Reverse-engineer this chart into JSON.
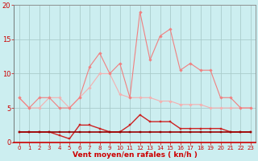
{
  "x": [
    0,
    1,
    2,
    3,
    4,
    5,
    6,
    7,
    8,
    9,
    10,
    11,
    12,
    13,
    14,
    15,
    16,
    17,
    18,
    19,
    20,
    21,
    22,
    23
  ],
  "rafales": [
    6.5,
    5.0,
    6.5,
    6.5,
    5.0,
    5.0,
    6.5,
    11.0,
    13.0,
    10.0,
    11.5,
    6.5,
    19.0,
    12.0,
    15.5,
    16.5,
    10.5,
    11.5,
    10.5,
    10.5,
    6.5,
    6.5,
    5.0,
    5.0
  ],
  "moyenne_rafales": [
    6.5,
    5.0,
    5.0,
    6.5,
    6.5,
    5.0,
    6.5,
    8.0,
    10.0,
    10.0,
    7.0,
    6.5,
    6.5,
    6.5,
    6.0,
    6.0,
    5.5,
    5.5,
    5.5,
    5.0,
    5.0,
    5.0,
    5.0,
    5.0
  ],
  "vent_moyen": [
    1.5,
    1.5,
    1.5,
    1.5,
    1.0,
    0.5,
    2.5,
    2.5,
    2.0,
    1.5,
    1.5,
    2.5,
    4.0,
    3.0,
    3.0,
    3.0,
    2.0,
    2.0,
    2.0,
    2.0,
    2.0,
    1.5,
    1.5,
    1.5
  ],
  "baseline": [
    1.5,
    1.5,
    1.5,
    1.5,
    1.5,
    1.5,
    1.5,
    1.5,
    1.5,
    1.5,
    1.5,
    1.5,
    1.5,
    1.5,
    1.5,
    1.5,
    1.5,
    1.5,
    1.5,
    1.5,
    1.5,
    1.5,
    1.5,
    1.5
  ],
  "color_rafales": "#f08080",
  "color_moyenne_rafales": "#f4b0b0",
  "color_vent_moyen": "#cc2222",
  "color_baseline": "#990000",
  "bg_color": "#cceef0",
  "grid_color": "#bbdddd",
  "xlabel": "Vent moyen/en rafales ( kn/h )",
  "xlabel_color": "#cc0000",
  "tick_color": "#cc0000",
  "ylim": [
    0,
    20
  ],
  "xlim": [
    -0.5,
    23.5
  ],
  "yticks": [
    0,
    5,
    10,
    15,
    20
  ],
  "xticks": [
    0,
    1,
    2,
    3,
    4,
    5,
    6,
    7,
    8,
    9,
    10,
    11,
    12,
    13,
    14,
    15,
    16,
    17,
    18,
    19,
    20,
    21,
    22,
    23
  ]
}
